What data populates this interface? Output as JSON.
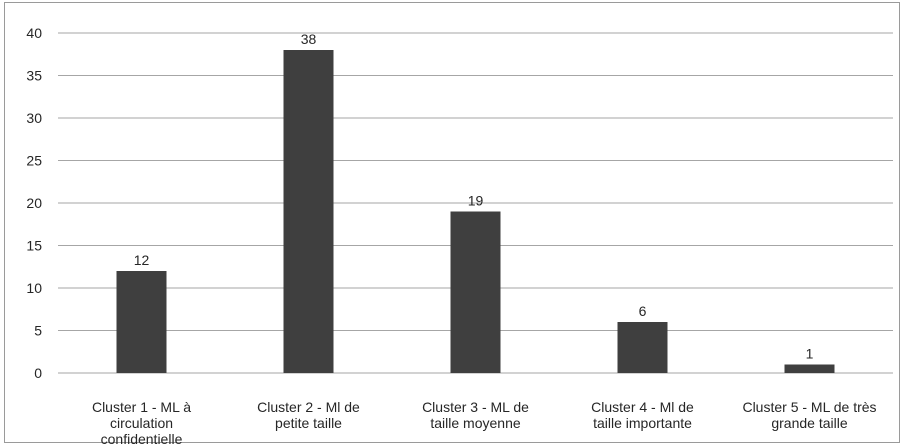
{
  "chart_data": {
    "type": "bar",
    "title": "",
    "xlabel": "",
    "ylabel": "",
    "categories": [
      [
        "Cluster 1 - ML à",
        "circulation",
        "confidentielle"
      ],
      [
        "Cluster 2 - Ml de",
        "petite taille"
      ],
      [
        "Cluster 3 - ML de",
        "taille moyenne"
      ],
      [
        "Cluster 4 - Ml de",
        "taille importante"
      ],
      [
        "Cluster 5 - ML de très",
        "grande taille"
      ]
    ],
    "values": [
      12,
      38,
      19,
      6,
      1
    ],
    "data_labels": [
      "12",
      "38",
      "19",
      "6",
      "1"
    ],
    "ylim": [
      0,
      40
    ],
    "yticks": [
      "0",
      "5",
      "10",
      "15",
      "20",
      "25",
      "30",
      "35",
      "40"
    ],
    "grid": true,
    "legend": "none",
    "colors": {
      "bar": "#3f3f3f",
      "grid": "#a6a6a6",
      "text": "#262626"
    }
  }
}
